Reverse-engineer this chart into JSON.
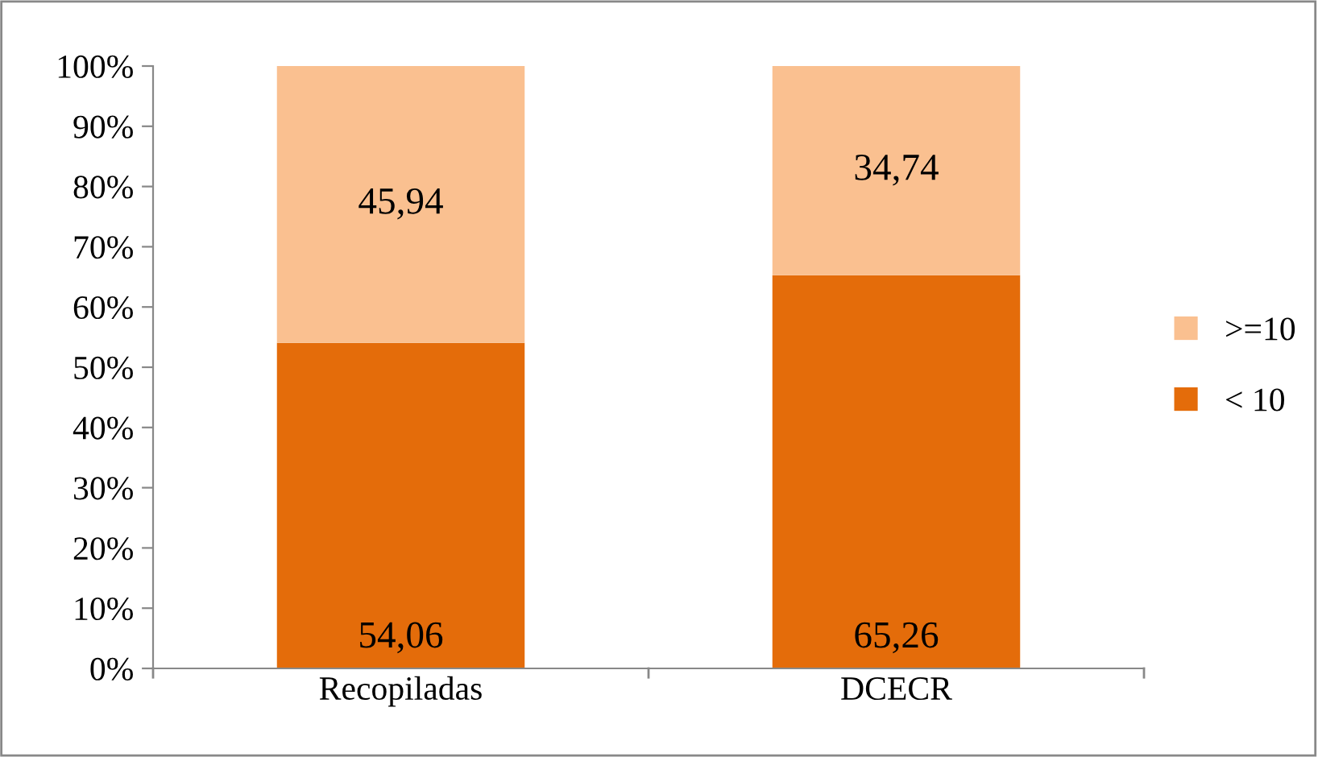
{
  "chart_data": {
    "type": "bar",
    "stacked": true,
    "categories": [
      "Recopiladas",
      "DCECR"
    ],
    "series": [
      {
        "name": "< 10",
        "color": "#e46c0a",
        "values": [
          54.06,
          65.26
        ],
        "value_labels": [
          "54,06",
          "65,26"
        ]
      },
      {
        "name": ">=10",
        "color": "#fac090",
        "values": [
          45.94,
          34.74
        ],
        "value_labels": [
          "45,94",
          "34,74"
        ]
      }
    ],
    "ylim": [
      0,
      100
    ],
    "yticks": [
      {
        "value": 0,
        "label": "0%"
      },
      {
        "value": 10,
        "label": "10%"
      },
      {
        "value": 20,
        "label": "20%"
      },
      {
        "value": 30,
        "label": "30%"
      },
      {
        "value": 40,
        "label": "40%"
      },
      {
        "value": 50,
        "label": "50%"
      },
      {
        "value": 60,
        "label": "60%"
      },
      {
        "value": 70,
        "label": "70%"
      },
      {
        "value": 80,
        "label": "80%"
      },
      {
        "value": 90,
        "label": "90%"
      },
      {
        "value": 100,
        "label": "100%"
      }
    ],
    "grid": false,
    "legend": "right"
  }
}
